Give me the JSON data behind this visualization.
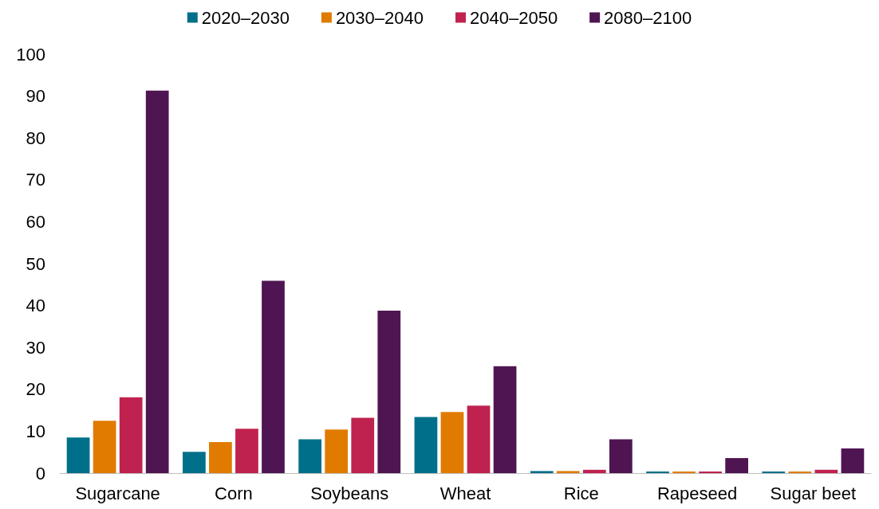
{
  "chart_data": {
    "type": "bar",
    "categories": [
      "Sugarcane",
      "Corn",
      "Soybeans",
      "Wheat",
      "Rice",
      "Rapeseed",
      "Sugar beet"
    ],
    "series": [
      {
        "name": "2020–2030",
        "color": "#00708a",
        "values": [
          8.5,
          5.1,
          8.1,
          13.4,
          0.5,
          0.4,
          0.4
        ]
      },
      {
        "name": "2030–2040",
        "color": "#e07b00",
        "values": [
          12.5,
          7.4,
          10.4,
          14.6,
          0.5,
          0.4,
          0.4
        ]
      },
      {
        "name": "2040–2050",
        "color": "#c0224f",
        "values": [
          18.1,
          10.6,
          13.2,
          16.1,
          0.8,
          0.4,
          0.8
        ]
      },
      {
        "name": "2080–2100",
        "color": "#4f1552",
        "values": [
          91.3,
          45.9,
          38.8,
          25.5,
          8.1,
          3.6,
          5.9
        ]
      }
    ],
    "ylim": [
      0,
      100
    ],
    "yticks": [
      0,
      10,
      20,
      30,
      40,
      50,
      60,
      70,
      80,
      90,
      100
    ],
    "grid": false,
    "legend": "top"
  }
}
